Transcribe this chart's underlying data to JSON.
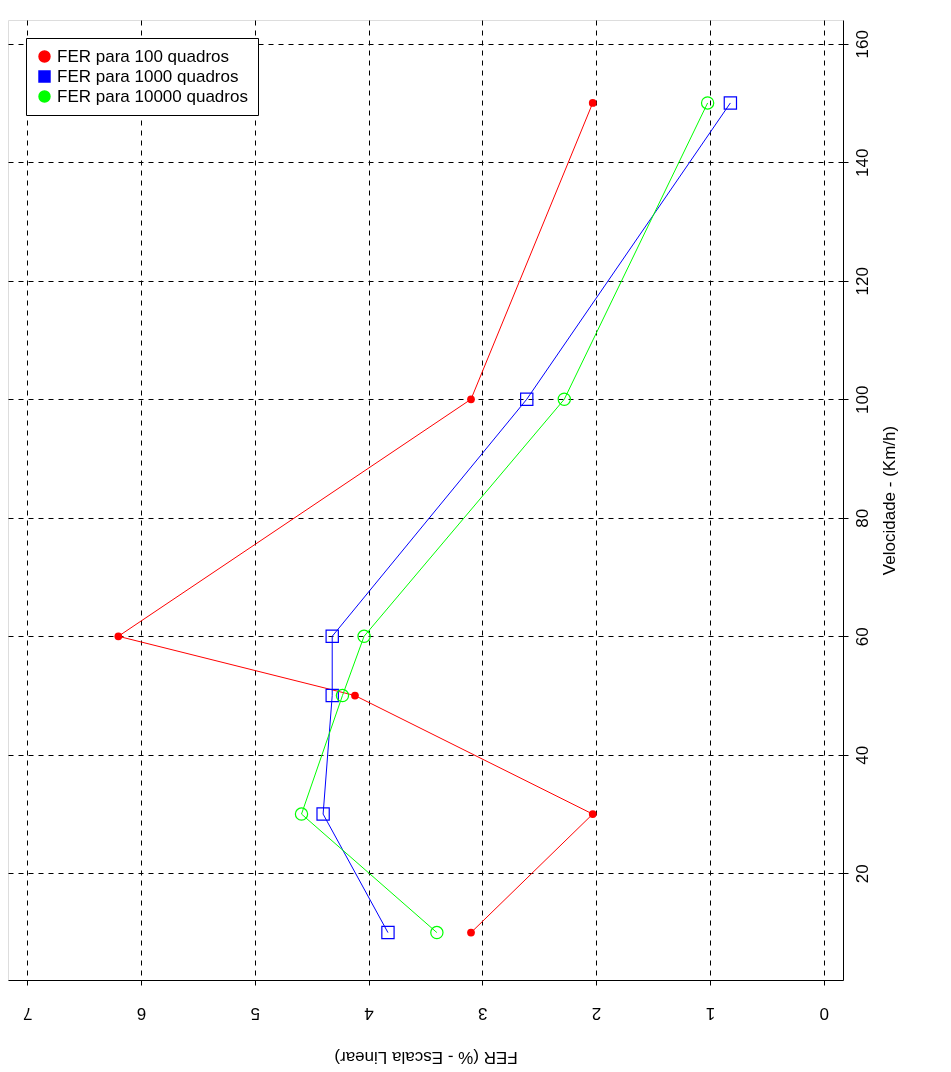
{
  "chart_data": {
    "type": "line",
    "xlabel": "FER (% - Escala Linear)",
    "ylabel": "Velocidade - (Km/h)",
    "series": [
      {
        "name": "FER para 100 quadros",
        "color": "#ff0000",
        "marker": "circle",
        "x": [
          3.1,
          2.03,
          4.12,
          6.2,
          3.1,
          2.03
        ],
        "values": [
          10,
          30,
          50,
          60,
          100,
          150
        ]
      },
      {
        "name": "FER para 1000 quadros",
        "color": "#0000ff",
        "marker": "square",
        "x": [
          3.83,
          4.4,
          4.32,
          4.32,
          2.61,
          0.82
        ],
        "values": [
          10,
          30,
          50,
          60,
          100,
          150
        ]
      },
      {
        "name": "FER para 10000 quadros",
        "color": "#00ff00",
        "marker": "circle",
        "x": [
          3.4,
          4.59,
          4.23,
          4.04,
          2.28,
          1.02
        ],
        "values": [
          10,
          30,
          50,
          60,
          100,
          150
        ]
      }
    ],
    "xlim": [
      7.17,
      -0.17
    ],
    "xticks": [
      7,
      6,
      5,
      4,
      3,
      2,
      1,
      0
    ],
    "ylim": [
      2,
      164
    ],
    "yticks": [
      20,
      40,
      60,
      80,
      100,
      120,
      140,
      160
    ],
    "grid": true,
    "legend": "top left",
    "line_style": "solid"
  }
}
